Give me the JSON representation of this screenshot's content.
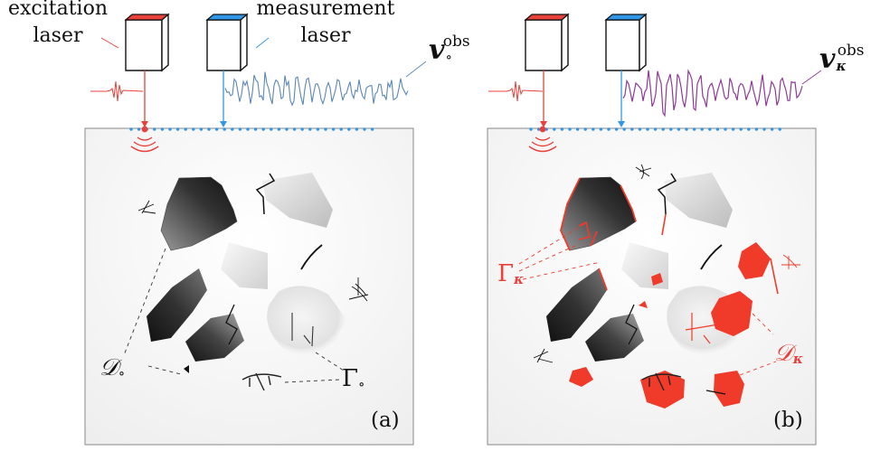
{
  "panel_a": {
    "excitation_label": [
      "excitation",
      "laser"
    ],
    "measurement_label": [
      "measurement",
      "laser"
    ],
    "signal_label": "v",
    "signal_sup": "obs",
    "signal_sub": "∘",
    "defect_label": "𝒟",
    "defect_sub": "∘",
    "crack_label": "Γ",
    "crack_sub": "∘",
    "panel_tag": "(a)"
  },
  "panel_b": {
    "signal_label": "v",
    "signal_sup": "obs",
    "signal_sub": "κ",
    "defect_label": "𝒟",
    "defect_sub": "κ",
    "crack_label": "Γ",
    "crack_sub": "κ",
    "panel_tag": "(b)"
  },
  "colors": {
    "excitation": "#e8413a",
    "measurement": "#2f96e8",
    "signal_a": "#5b87b8",
    "signal_b": "#8e3a96",
    "damage": "#f03a2a"
  }
}
